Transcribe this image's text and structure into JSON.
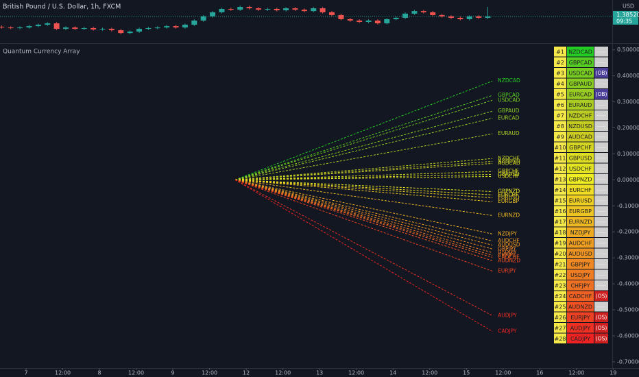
{
  "chart_data": [
    {
      "type": "candlestick",
      "title": "British Pound / U.S. Dollar, 1h, FXCM",
      "currency": "USD",
      "x": [
        -8,
        -5,
        -2,
        1,
        4,
        7,
        10,
        13,
        16,
        19,
        22,
        25,
        28,
        31,
        34,
        37,
        40,
        43,
        46,
        49,
        52,
        55,
        58,
        61,
        64,
        67,
        70,
        73,
        76,
        79,
        82,
        85,
        88,
        91,
        94,
        97,
        100,
        103,
        106,
        109,
        112,
        115,
        118,
        121,
        124,
        127,
        130,
        133,
        136,
        139,
        142,
        145,
        148,
        151
      ],
      "open": [
        1.38,
        1.3796,
        1.3793,
        1.3796,
        1.3803,
        1.381,
        1.3817,
        1.3789,
        1.3796,
        1.3789,
        1.3793,
        1.3786,
        1.3789,
        1.3782,
        1.3768,
        1.3775,
        1.3789,
        1.3793,
        1.3796,
        1.3803,
        1.3796,
        1.381,
        1.3831,
        1.3852,
        1.3873,
        1.389,
        1.3886,
        1.39,
        1.3893,
        1.3886,
        1.389,
        1.3883,
        1.3893,
        1.3886,
        1.3879,
        1.3893,
        1.3873,
        1.3859,
        1.3838,
        1.3831,
        1.3824,
        1.3831,
        1.3817,
        1.3838,
        1.3845,
        1.3866,
        1.3879,
        1.3873,
        1.3859,
        1.3852,
        1.3845,
        1.3838,
        1.3852,
        1.3845
      ],
      "high": [
        1.3806,
        1.3802,
        1.3802,
        1.3809,
        1.3816,
        1.3823,
        1.3823,
        1.3802,
        1.3802,
        1.3799,
        1.3799,
        1.3795,
        1.3795,
        1.3788,
        1.3781,
        1.3795,
        1.3799,
        1.3802,
        1.3809,
        1.3809,
        1.3816,
        1.3837,
        1.3858,
        1.3879,
        1.3896,
        1.3896,
        1.3906,
        1.3906,
        1.3899,
        1.3896,
        1.3896,
        1.3899,
        1.3899,
        1.3892,
        1.3899,
        1.3899,
        1.3879,
        1.3865,
        1.3844,
        1.3837,
        1.3837,
        1.3837,
        1.3844,
        1.3851,
        1.3872,
        1.3885,
        1.3885,
        1.3879,
        1.3865,
        1.3858,
        1.3851,
        1.3858,
        1.3858,
        1.39
      ],
      "low": [
        1.379,
        1.3787,
        1.3787,
        1.379,
        1.3797,
        1.3804,
        1.3783,
        1.3783,
        1.3783,
        1.3783,
        1.378,
        1.378,
        1.3776,
        1.3762,
        1.3762,
        1.3769,
        1.3783,
        1.3787,
        1.379,
        1.379,
        1.379,
        1.3804,
        1.3825,
        1.3846,
        1.3867,
        1.388,
        1.388,
        1.3887,
        1.388,
        1.388,
        1.3877,
        1.3877,
        1.388,
        1.3873,
        1.3873,
        1.3867,
        1.3853,
        1.3832,
        1.3825,
        1.3818,
        1.3818,
        1.3811,
        1.3811,
        1.3832,
        1.3839,
        1.386,
        1.3867,
        1.3853,
        1.3846,
        1.3839,
        1.3832,
        1.3832,
        1.3839,
        1.3839
      ],
      "close": [
        1.3796,
        1.3793,
        1.3796,
        1.3803,
        1.381,
        1.3817,
        1.3789,
        1.3796,
        1.3789,
        1.3793,
        1.3786,
        1.3789,
        1.3782,
        1.3768,
        1.3775,
        1.3789,
        1.3793,
        1.3796,
        1.3803,
        1.3796,
        1.381,
        1.3831,
        1.3852,
        1.3873,
        1.389,
        1.3886,
        1.39,
        1.3893,
        1.3886,
        1.389,
        1.3883,
        1.3893,
        1.3886,
        1.3879,
        1.3893,
        1.3873,
        1.3859,
        1.3838,
        1.3831,
        1.3824,
        1.3831,
        1.3817,
        1.3838,
        1.3845,
        1.3866,
        1.3879,
        1.3873,
        1.3859,
        1.3852,
        1.3845,
        1.3838,
        1.3852,
        1.3845,
        1.3852
      ],
      "up_color": "#26a69a",
      "down_color": "#ef5350",
      "xlim": [
        -8.52,
        191.7
      ],
      "ylim": [
        1.372,
        1.3935
      ],
      "last_price": {
        "value": 1.3852,
        "label": "1.38520"
      },
      "countdown": "09:35"
    },
    {
      "type": "line",
      "title": "Quantum Currency Array",
      "dashed": true,
      "x": [
        68.4,
        152.5
      ],
      "xlim": [
        -8.52,
        191.7
      ],
      "xticks": [
        {
          "value": 0,
          "label": "7"
        },
        {
          "value": 12,
          "label": "12:00"
        },
        {
          "value": 24,
          "label": "8"
        },
        {
          "value": 36,
          "label": "12:00"
        },
        {
          "value": 48,
          "label": "9"
        },
        {
          "value": 60,
          "label": "12:00"
        },
        {
          "value": 72,
          "label": "12"
        },
        {
          "value": 84,
          "label": "12:00"
        },
        {
          "value": 96,
          "label": "13"
        },
        {
          "value": 108,
          "label": "12:00"
        },
        {
          "value": 120,
          "label": "14"
        },
        {
          "value": 132,
          "label": "12:00"
        },
        {
          "value": 144,
          "label": "15"
        },
        {
          "value": 156,
          "label": "12:00"
        },
        {
          "value": 168,
          "label": "16"
        },
        {
          "value": 180,
          "label": "12:00"
        },
        {
          "value": 192,
          "label": "19"
        }
      ],
      "ylim": [
        -0.724,
        0.523
      ],
      "yticks": [
        {
          "value": 0.5,
          "label": "0.50000"
        },
        {
          "value": 0.4,
          "label": "0.40000"
        },
        {
          "value": 0.3,
          "label": "0.30000"
        },
        {
          "value": 0.2,
          "label": "0.20000"
        },
        {
          "value": 0.1,
          "label": "0.10000"
        },
        {
          "value": 0,
          "label": "0.00000"
        },
        {
          "value": -0.1,
          "label": "-0.10000"
        },
        {
          "value": -0.2,
          "label": "-0.20000"
        },
        {
          "value": -0.3,
          "label": "-0.30000"
        },
        {
          "value": -0.4,
          "label": "-0.40000"
        },
        {
          "value": -0.5,
          "label": "-0.50000"
        },
        {
          "value": -0.6,
          "label": "-0.60000"
        },
        {
          "value": -0.7,
          "label": "-0.70000"
        }
      ],
      "series": [
        {
          "name": "NZDCAD",
          "color": "#22cc22",
          "values": [
            0,
            0.38
          ]
        },
        {
          "name": "GBPCAD",
          "color": "#55cc22",
          "values": [
            0,
            0.325
          ]
        },
        {
          "name": "USDCAD",
          "color": "#77cc22",
          "values": [
            0,
            0.306
          ]
        },
        {
          "name": "GBPAUD",
          "color": "#88cc22",
          "values": [
            0,
            0.264
          ]
        },
        {
          "name": "EURCAD",
          "color": "#99cc22",
          "values": [
            0,
            0.237
          ]
        },
        {
          "name": "EURAUD",
          "color": "#aacc22",
          "values": [
            0,
            0.177
          ]
        },
        {
          "name": "NZDCHF",
          "color": "#bbcc22",
          "values": [
            0,
            0.082
          ]
        },
        {
          "name": "NZDUSD",
          "color": "#c4cc22",
          "values": [
            0,
            0.071
          ]
        },
        {
          "name": "AUDCAD",
          "color": "#cccc22",
          "values": [
            0,
            0.063
          ]
        },
        {
          "name": "GBPCHF",
          "color": "#d4d422",
          "values": [
            0,
            0.032
          ]
        },
        {
          "name": "GBPUSD",
          "color": "#dddd22",
          "values": [
            0,
            0.021
          ]
        },
        {
          "name": "USDCHF",
          "color": "#e4e422",
          "values": [
            0,
            0.013
          ]
        },
        {
          "name": "GBPNZD",
          "color": "#eeee22",
          "values": [
            0,
            -0.045
          ]
        },
        {
          "name": "EURCHF",
          "color": "#eedd22",
          "values": [
            0,
            -0.058
          ]
        },
        {
          "name": "EURUSD",
          "color": "#eed022",
          "values": [
            0,
            -0.069
          ]
        },
        {
          "name": "EURGBP",
          "color": "#eec422",
          "values": [
            0,
            -0.084
          ]
        },
        {
          "name": "EURNZD",
          "color": "#eeb822",
          "values": [
            0,
            -0.137
          ]
        },
        {
          "name": "NZDJPY",
          "color": "#eeaa22",
          "values": [
            0,
            -0.208
          ]
        },
        {
          "name": "AUDCHF",
          "color": "#ee9f22",
          "values": [
            0,
            -0.235
          ]
        },
        {
          "name": "AUDUSD",
          "color": "#ee9422",
          "values": [
            0,
            -0.251
          ]
        },
        {
          "name": "GBPJPY",
          "color": "#ee8822",
          "values": [
            0,
            -0.266
          ]
        },
        {
          "name": "USDJPY",
          "color": "#ee7c22",
          "values": [
            0,
            -0.28
          ]
        },
        {
          "name": "CHFJPY",
          "color": "#ee7022",
          "values": [
            0,
            -0.29
          ]
        },
        {
          "name": "CADCHF",
          "color": "#ee6022",
          "values": [
            0,
            -0.298
          ]
        },
        {
          "name": "AUDNZD",
          "color": "#ee5022",
          "values": [
            0,
            -0.311
          ]
        },
        {
          "name": "EURJPY",
          "color": "#ee4022",
          "values": [
            0,
            -0.351
          ]
        },
        {
          "name": "AUDJPY",
          "color": "#ee3022",
          "values": [
            0,
            -0.522
          ]
        },
        {
          "name": "CADJPY",
          "color": "#ee2222",
          "values": [
            0,
            -0.583
          ]
        }
      ]
    }
  ],
  "table": {
    "rank_color": "#f5e94a",
    "status_colors": {
      "-----": "#cfcfcf",
      "(OB)": "#4b3e99",
      "(OS)": "#cc2020"
    },
    "rows": [
      [
        "#1",
        "NZDCAD",
        "-----"
      ],
      [
        "#2",
        "GBPCAD",
        "-----"
      ],
      [
        "#3",
        "USDCAD",
        "(OB)"
      ],
      [
        "#4",
        "GBPAUD",
        "-----"
      ],
      [
        "#5",
        "EURCAD",
        "(OB)"
      ],
      [
        "#6",
        "EURAUD",
        "-----"
      ],
      [
        "#7",
        "NZDCHF",
        "-----"
      ],
      [
        "#8",
        "NZDUSD",
        "-----"
      ],
      [
        "#9",
        "AUDCAD",
        "-----"
      ],
      [
        "#10",
        "GBPCHF",
        "-----"
      ],
      [
        "#11",
        "GBPUSD",
        "-----"
      ],
      [
        "#12",
        "USDCHF",
        "-----"
      ],
      [
        "#13",
        "GBPNZD",
        "-----"
      ],
      [
        "#14",
        "EURCHF",
        "-----"
      ],
      [
        "#15",
        "EURUSD",
        "-----"
      ],
      [
        "#16",
        "EURGBP",
        "-----"
      ],
      [
        "#17",
        "EURNZD",
        "-----"
      ],
      [
        "#18",
        "NZDJPY",
        "-----"
      ],
      [
        "#19",
        "AUDCHF",
        "-----"
      ],
      [
        "#20",
        "AUDUSD",
        "-----"
      ],
      [
        "#21",
        "GBPJPY",
        "-----"
      ],
      [
        "#22",
        "USDJPY",
        "-----"
      ],
      [
        "#23",
        "CHFJPY",
        "-----"
      ],
      [
        "#24",
        "CADCHF",
        "(OS)"
      ],
      [
        "#25",
        "AUDNZD",
        "-----"
      ],
      [
        "#26",
        "EURJPY",
        "(OS)"
      ],
      [
        "#27",
        "AUDJPY",
        "(OS)"
      ],
      [
        "#28",
        "CADJPY",
        "(OS)"
      ]
    ]
  }
}
